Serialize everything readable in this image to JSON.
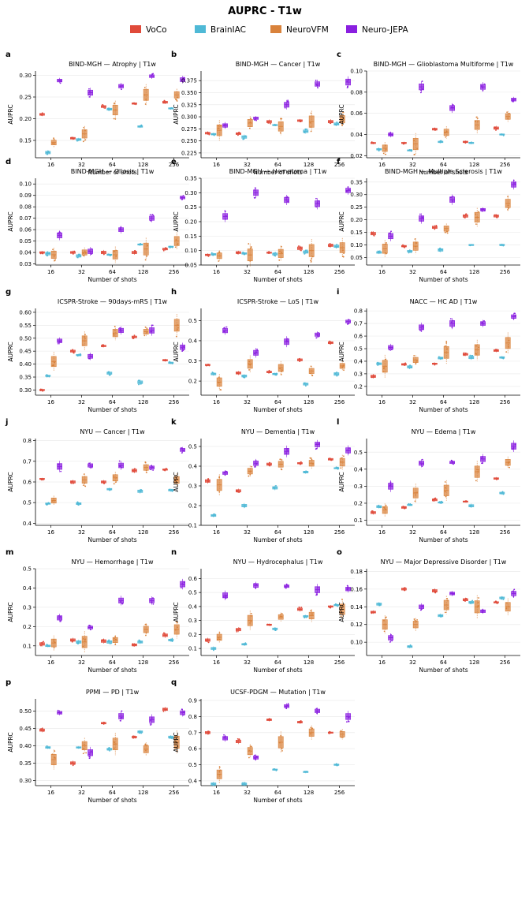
{
  "figure": {
    "title": "AUPRC - T1w",
    "xlabel": "Number of shots",
    "ylabel": "AUPRC",
    "shots": [
      "16",
      "32",
      "64",
      "128",
      "256"
    ]
  },
  "legend": [
    {
      "name": "VoCo",
      "color": "#e04a3a"
    },
    {
      "name": "BrainIAC",
      "color": "#4fb9d6"
    },
    {
      "name": "NeuroVFM",
      "color": "#d9823b"
    },
    {
      "name": "Neuro-JEPA",
      "color": "#8a1fe0"
    }
  ],
  "colors": {
    "voco": "#e04a3a",
    "brainiac": "#4fb9d6",
    "neurovfm": "#d9823b",
    "neurojepa": "#8a1fe0"
  },
  "chart_data": [
    {
      "type": "box",
      "letter": "a",
      "title": "BIND-MGH — Atrophy  |  T1w",
      "ylim": [
        0.11,
        0.31
      ],
      "yticks": [
        0.15,
        0.2,
        0.25,
        0.3
      ],
      "dec": 2,
      "series": [
        {
          "name": "VoCo",
          "values": [
            0.21,
            0.155,
            0.228,
            0.235,
            0.238
          ]
        },
        {
          "name": "BrainIAC",
          "values": [
            0.122,
            0.152,
            0.222,
            0.182,
            0.224
          ]
        },
        {
          "name": "NeuroVFM",
          "values": [
            0.145,
            0.165,
            0.22,
            0.255,
            0.255
          ]
        },
        {
          "name": "Neuro-JEPA",
          "values": [
            0.288,
            0.26,
            0.275,
            0.298,
            0.29
          ]
        }
      ]
    },
    {
      "type": "box",
      "letter": "b",
      "title": "BIND-MGH — Cancer  |  T1w",
      "ylim": [
        0.215,
        0.395
      ],
      "yticks": [
        0.225,
        0.25,
        0.275,
        0.3,
        0.325,
        0.35,
        0.375
      ],
      "dec": 3,
      "series": [
        {
          "name": "VoCo",
          "values": [
            0.266,
            0.265,
            0.29,
            0.292,
            0.29
          ]
        },
        {
          "name": "BrainIAC",
          "values": [
            0.264,
            0.258,
            0.283,
            0.27,
            0.285
          ]
        },
        {
          "name": "NeuroVFM",
          "values": [
            0.272,
            0.287,
            0.28,
            0.29,
            0.295
          ]
        },
        {
          "name": "Neuro-JEPA",
          "values": [
            0.282,
            0.297,
            0.325,
            0.368,
            0.372
          ]
        }
      ]
    },
    {
      "type": "box",
      "letter": "c",
      "title": "BIND-MGH — Glioblastoma Multiforme  |  T1w",
      "ylim": [
        0.018,
        0.1
      ],
      "yticks": [
        0.02,
        0.04,
        0.06,
        0.08,
        0.1
      ],
      "dec": 2,
      "series": [
        {
          "name": "VoCo",
          "values": [
            0.032,
            0.032,
            0.045,
            0.033,
            0.046
          ]
        },
        {
          "name": "BrainIAC",
          "values": [
            0.026,
            0.025,
            0.033,
            0.032,
            0.04
          ]
        },
        {
          "name": "NeuroVFM",
          "values": [
            0.027,
            0.031,
            0.042,
            0.049,
            0.057
          ]
        },
        {
          "name": "Neuro-JEPA",
          "values": [
            0.04,
            0.085,
            0.065,
            0.085,
            0.073
          ]
        }
      ]
    },
    {
      "type": "box",
      "letter": "d",
      "title": "BIND-MGH — Gliosis  |  T1w",
      "ylim": [
        0.029,
        0.105
      ],
      "yticks": [
        0.03,
        0.04,
        0.05,
        0.06,
        0.07,
        0.08,
        0.09,
        0.1
      ],
      "dec": 2,
      "series": [
        {
          "name": "VoCo",
          "values": [
            0.04,
            0.04,
            0.04,
            0.04,
            0.043
          ]
        },
        {
          "name": "BrainIAC",
          "values": [
            0.039,
            0.037,
            0.038,
            0.047,
            0.045
          ]
        },
        {
          "name": "NeuroVFM",
          "values": [
            0.038,
            0.04,
            0.038,
            0.043,
            0.05
          ]
        },
        {
          "name": "Neuro-JEPA",
          "values": [
            0.055,
            0.041,
            0.06,
            0.07,
            0.088
          ]
        }
      ]
    },
    {
      "type": "box",
      "letter": "e",
      "title": "BIND-MGH — Hematoma  |  T1w",
      "ylim": [
        0.05,
        0.35
      ],
      "yticks": [
        0.05,
        0.1,
        0.15,
        0.2,
        0.25,
        0.3,
        0.35
      ],
      "dec": 2,
      "series": [
        {
          "name": "VoCo",
          "values": [
            0.085,
            0.093,
            0.093,
            0.108,
            0.118
          ]
        },
        {
          "name": "BrainIAC",
          "values": [
            0.087,
            0.09,
            0.088,
            0.095,
            0.115
          ]
        },
        {
          "name": "NeuroVFM",
          "values": [
            0.082,
            0.085,
            0.09,
            0.1,
            0.11
          ]
        },
        {
          "name": "Neuro-JEPA",
          "values": [
            0.218,
            0.3,
            0.275,
            0.262,
            0.308
          ]
        }
      ]
    },
    {
      "type": "box",
      "letter": "f",
      "title": "BIND-MGH — Multiple Sclerosis  |  T1w",
      "ylim": [
        0.02,
        0.365
      ],
      "yticks": [
        0.05,
        0.1,
        0.15,
        0.2,
        0.25,
        0.3,
        0.35
      ],
      "dec": 2,
      "series": [
        {
          "name": "VoCo",
          "values": [
            0.145,
            0.095,
            0.17,
            0.215,
            0.215
          ]
        },
        {
          "name": "BrainIAC",
          "values": [
            0.07,
            0.075,
            0.08,
            0.1,
            0.1
          ]
        },
        {
          "name": "NeuroVFM",
          "values": [
            0.085,
            0.095,
            0.165,
            0.21,
            0.265
          ]
        },
        {
          "name": "Neuro-JEPA",
          "values": [
            0.135,
            0.205,
            0.28,
            0.24,
            0.34
          ]
        }
      ]
    },
    {
      "type": "box",
      "letter": "g",
      "title": "ICSPR-Stroke — 90days-mRS  |  T1w",
      "ylim": [
        0.28,
        0.615
      ],
      "yticks": [
        0.3,
        0.35,
        0.4,
        0.45,
        0.5,
        0.55,
        0.6
      ],
      "dec": 2,
      "series": [
        {
          "name": "VoCo",
          "values": [
            0.3,
            0.45,
            0.47,
            0.505,
            0.415
          ]
        },
        {
          "name": "BrainIAC",
          "values": [
            0.355,
            0.435,
            0.365,
            0.33,
            0.405
          ]
        },
        {
          "name": "NeuroVFM",
          "values": [
            0.41,
            0.49,
            0.52,
            0.525,
            0.55
          ]
        },
        {
          "name": "Neuro-JEPA",
          "values": [
            0.49,
            0.43,
            0.53,
            0.53,
            0.465
          ]
        }
      ]
    },
    {
      "type": "box",
      "letter": "h",
      "title": "ICSPR-Stroke — LoS  |  T1w",
      "ylim": [
        0.13,
        0.56
      ],
      "yticks": [
        0.2,
        0.3,
        0.4,
        0.5
      ],
      "dec": 1,
      "series": [
        {
          "name": "VoCo",
          "values": [
            0.28,
            0.24,
            0.245,
            0.305,
            0.39
          ]
        },
        {
          "name": "BrainIAC",
          "values": [
            0.235,
            0.225,
            0.235,
            0.185,
            0.235
          ]
        },
        {
          "name": "NeuroVFM",
          "values": [
            0.195,
            0.285,
            0.265,
            0.25,
            0.275
          ]
        },
        {
          "name": "Neuro-JEPA",
          "values": [
            0.45,
            0.34,
            0.395,
            0.43,
            0.495
          ]
        }
      ]
    },
    {
      "type": "box",
      "letter": "i",
      "title": "NACC — HC AD  |  T1w",
      "ylim": [
        0.13,
        0.82
      ],
      "yticks": [
        0.2,
        0.3,
        0.4,
        0.5,
        0.6,
        0.7,
        0.8
      ],
      "dec": 1,
      "series": [
        {
          "name": "VoCo",
          "values": [
            0.28,
            0.375,
            0.38,
            0.455,
            0.485
          ]
        },
        {
          "name": "BrainIAC",
          "values": [
            0.38,
            0.355,
            0.425,
            0.43,
            0.43
          ]
        },
        {
          "name": "NeuroVFM",
          "values": [
            0.36,
            0.41,
            0.47,
            0.49,
            0.545
          ]
        },
        {
          "name": "Neuro-JEPA",
          "values": [
            0.51,
            0.67,
            0.7,
            0.7,
            0.755
          ]
        }
      ]
    },
    {
      "type": "box",
      "letter": "j",
      "title": "NYU — Cancer  |  T1w",
      "ylim": [
        0.39,
        0.81
      ],
      "yticks": [
        0.4,
        0.5,
        0.6,
        0.7,
        0.8
      ],
      "dec": 1,
      "series": [
        {
          "name": "VoCo",
          "values": [
            0.615,
            0.6,
            0.6,
            0.655,
            0.66
          ]
        },
        {
          "name": "BrainIAC",
          "values": [
            0.495,
            0.495,
            0.565,
            0.555,
            0.56
          ]
        },
        {
          "name": "NeuroVFM",
          "values": [
            0.51,
            0.61,
            0.62,
            0.67,
            0.61
          ]
        },
        {
          "name": "Neuro-JEPA",
          "values": [
            0.675,
            0.68,
            0.68,
            0.67,
            0.755
          ]
        }
      ]
    },
    {
      "type": "box",
      "letter": "k",
      "title": "NYU — Dementia  |  T1w",
      "ylim": [
        0.1,
        0.54
      ],
      "yticks": [
        0.1,
        0.2,
        0.3,
        0.4,
        0.5
      ],
      "dec": 1,
      "series": [
        {
          "name": "VoCo",
          "values": [
            0.325,
            0.275,
            0.41,
            0.415,
            0.435
          ]
        },
        {
          "name": "BrainIAC",
          "values": [
            0.15,
            0.2,
            0.29,
            0.37,
            0.39
          ]
        },
        {
          "name": "NeuroVFM",
          "values": [
            0.305,
            0.375,
            0.41,
            0.415,
            0.42
          ]
        },
        {
          "name": "Neuro-JEPA",
          "values": [
            0.365,
            0.415,
            0.475,
            0.51,
            0.48
          ]
        }
      ]
    },
    {
      "type": "box",
      "letter": "l",
      "title": "NYU — Edema  |  T1w",
      "ylim": [
        0.07,
        0.58
      ],
      "yticks": [
        0.1,
        0.2,
        0.3,
        0.4,
        0.5
      ],
      "dec": 1,
      "series": [
        {
          "name": "VoCo",
          "values": [
            0.145,
            0.175,
            0.22,
            0.21,
            0.345
          ]
        },
        {
          "name": "BrainIAC",
          "values": [
            0.18,
            0.19,
            0.205,
            0.185,
            0.26
          ]
        },
        {
          "name": "NeuroVFM",
          "values": [
            0.16,
            0.26,
            0.275,
            0.385,
            0.44
          ]
        },
        {
          "name": "Neuro-JEPA",
          "values": [
            0.3,
            0.435,
            0.44,
            0.46,
            0.535
          ]
        }
      ]
    },
    {
      "type": "box",
      "letter": "m",
      "title": "NYU — Hemorrhage  |  T1w",
      "ylim": [
        0.05,
        0.5
      ],
      "yticks": [
        0.1,
        0.2,
        0.3,
        0.4,
        0.5
      ],
      "dec": 1,
      "series": [
        {
          "name": "VoCo",
          "values": [
            0.11,
            0.13,
            0.125,
            0.105,
            0.155
          ]
        },
        {
          "name": "BrainIAC",
          "values": [
            0.1,
            0.12,
            0.12,
            0.12,
            0.13
          ]
        },
        {
          "name": "NeuroVFM",
          "values": [
            0.115,
            0.12,
            0.13,
            0.185,
            0.185
          ]
        },
        {
          "name": "Neuro-JEPA",
          "values": [
            0.245,
            0.195,
            0.335,
            0.335,
            0.42
          ]
        }
      ]
    },
    {
      "type": "box",
      "letter": "n",
      "title": "NYU — Hydrocephalus  |  T1w",
      "ylim": [
        0.05,
        0.67
      ],
      "yticks": [
        0.1,
        0.2,
        0.3,
        0.4,
        0.5,
        0.6
      ],
      "dec": 1,
      "series": [
        {
          "name": "VoCo",
          "values": [
            0.16,
            0.235,
            0.27,
            0.38,
            0.4
          ]
        },
        {
          "name": "BrainIAC",
          "values": [
            0.1,
            0.13,
            0.24,
            0.33,
            0.41
          ]
        },
        {
          "name": "NeuroVFM",
          "values": [
            0.18,
            0.3,
            0.325,
            0.335,
            0.38
          ]
        },
        {
          "name": "Neuro-JEPA",
          "values": [
            0.48,
            0.55,
            0.545,
            0.52,
            0.525
          ]
        }
      ]
    },
    {
      "type": "box",
      "letter": "o",
      "title": "NYU — Major Depressive Disorder  |  T1w",
      "ylim": [
        0.085,
        0.183
      ],
      "yticks": [
        0.1,
        0.12,
        0.14,
        0.16,
        0.18
      ],
      "dec": 2,
      "series": [
        {
          "name": "VoCo",
          "values": [
            0.134,
            0.16,
            0.158,
            0.148,
            0.145
          ]
        },
        {
          "name": "BrainIAC",
          "values": [
            0.143,
            0.095,
            0.13,
            0.145,
            0.15
          ]
        },
        {
          "name": "NeuroVFM",
          "values": [
            0.12,
            0.12,
            0.142,
            0.14,
            0.14
          ]
        },
        {
          "name": "Neuro-JEPA",
          "values": [
            0.105,
            0.14,
            0.155,
            0.135,
            0.155
          ]
        }
      ]
    },
    {
      "type": "box",
      "letter": "p",
      "title": "PPMI — PD  |  T1w",
      "ylim": [
        0.285,
        0.535
      ],
      "yticks": [
        0.3,
        0.35,
        0.4,
        0.45,
        0.5
      ],
      "dec": 2,
      "series": [
        {
          "name": "VoCo",
          "values": [
            0.445,
            0.35,
            0.465,
            0.425,
            0.505
          ]
        },
        {
          "name": "BrainIAC",
          "values": [
            0.395,
            0.395,
            0.39,
            0.44,
            0.425
          ]
        },
        {
          "name": "NeuroVFM",
          "values": [
            0.36,
            0.4,
            0.405,
            0.39,
            0.41
          ]
        },
        {
          "name": "Neuro-JEPA",
          "values": [
            0.495,
            0.38,
            0.485,
            0.475,
            0.495
          ]
        }
      ]
    },
    {
      "type": "box",
      "letter": "q",
      "title": "UCSF-PDGM — Mutation  |  T1w",
      "ylim": [
        0.37,
        0.91
      ],
      "yticks": [
        0.4,
        0.5,
        0.6,
        0.7,
        0.8,
        0.9
      ],
      "dec": 1,
      "series": [
        {
          "name": "VoCo",
          "values": [
            0.7,
            0.645,
            0.78,
            0.765,
            0.7
          ]
        },
        {
          "name": "BrainIAC",
          "values": [
            0.38,
            0.38,
            0.47,
            0.455,
            0.5
          ]
        },
        {
          "name": "NeuroVFM",
          "values": [
            0.44,
            0.585,
            0.64,
            0.7,
            0.69
          ]
        },
        {
          "name": "Neuro-JEPA",
          "values": [
            0.665,
            0.545,
            0.865,
            0.835,
            0.8
          ]
        }
      ]
    }
  ]
}
